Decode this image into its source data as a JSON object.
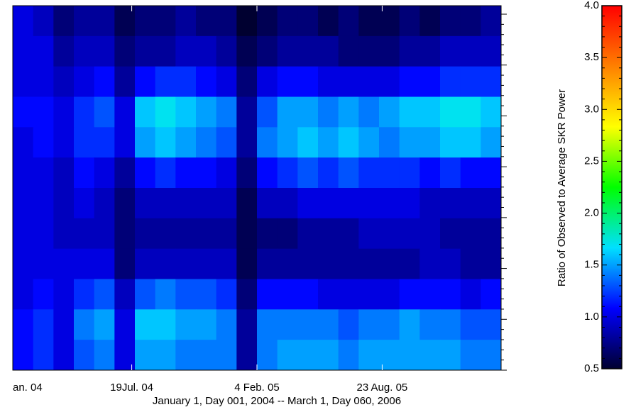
{
  "chart_data": {
    "type": "heatmap",
    "x_label": "January 1, Day 001, 2004 -- March 1, Day 060, 2006",
    "xlim": [
      10,
      790
    ],
    "xticks": [
      {
        "value": 0,
        "label": "an. 04"
      },
      {
        "value": 200,
        "label": "19Jul. 04"
      },
      {
        "value": 400,
        "label": "4 Feb. 05"
      },
      {
        "value": 600,
        "label": "23 Aug. 05"
      }
    ],
    "z": [
      [
        1.0,
        0.9,
        0.7,
        0.8,
        0.8,
        0.6,
        0.7,
        0.7,
        0.8,
        0.7,
        0.7,
        0.5,
        0.6,
        0.7,
        0.7,
        0.6,
        0.7,
        0.6,
        0.6,
        0.7,
        0.6,
        0.7,
        0.7,
        0.8
      ],
      [
        1.0,
        1.0,
        0.8,
        0.9,
        0.9,
        0.7,
        0.8,
        0.8,
        0.9,
        0.9,
        0.8,
        0.6,
        0.7,
        0.8,
        0.8,
        0.8,
        0.7,
        0.7,
        0.7,
        0.8,
        0.8,
        0.9,
        0.9,
        0.9
      ],
      [
        1.0,
        1.0,
        0.9,
        1.0,
        1.1,
        0.8,
        1.1,
        1.2,
        1.2,
        1.1,
        1.0,
        0.7,
        1.0,
        1.1,
        1.1,
        1.0,
        1.0,
        1.0,
        1.0,
        1.1,
        1.1,
        1.2,
        1.2,
        1.2
      ],
      [
        1.1,
        1.1,
        1.0,
        1.2,
        1.3,
        1.0,
        1.6,
        1.7,
        1.6,
        1.5,
        1.4,
        0.8,
        1.3,
        1.5,
        1.5,
        1.4,
        1.5,
        1.4,
        1.5,
        1.6,
        1.6,
        1.7,
        1.7,
        1.6
      ],
      [
        1.0,
        1.1,
        1.0,
        1.2,
        1.2,
        1.0,
        1.5,
        1.6,
        1.5,
        1.4,
        1.3,
        0.8,
        1.4,
        1.5,
        1.6,
        1.5,
        1.6,
        1.5,
        1.4,
        1.5,
        1.5,
        1.6,
        1.6,
        1.5
      ],
      [
        1.0,
        1.0,
        0.9,
        1.1,
        1.0,
        0.8,
        1.1,
        1.2,
        1.1,
        1.1,
        1.0,
        0.7,
        1.1,
        1.2,
        1.3,
        1.2,
        1.3,
        1.2,
        1.2,
        1.2,
        1.1,
        1.2,
        1.1,
        1.1
      ],
      [
        1.0,
        1.0,
        0.9,
        1.0,
        0.9,
        0.7,
        0.9,
        0.9,
        0.9,
        0.9,
        0.9,
        0.6,
        0.9,
        0.9,
        1.0,
        1.0,
        1.0,
        1.0,
        1.0,
        1.0,
        0.9,
        0.9,
        0.9,
        0.9
      ],
      [
        1.0,
        1.0,
        0.9,
        0.9,
        0.9,
        0.7,
        0.8,
        0.8,
        0.8,
        0.8,
        0.8,
        0.6,
        0.7,
        0.7,
        0.8,
        0.8,
        0.8,
        0.9,
        0.9,
        0.9,
        0.9,
        0.8,
        0.8,
        0.8
      ],
      [
        1.0,
        1.0,
        1.0,
        1.0,
        1.0,
        0.7,
        0.9,
        0.9,
        0.9,
        0.9,
        0.9,
        0.6,
        0.8,
        0.8,
        0.8,
        0.8,
        0.8,
        0.8,
        0.8,
        0.8,
        0.9,
        0.9,
        0.8,
        0.8
      ],
      [
        1.0,
        1.1,
        1.0,
        1.2,
        1.3,
        0.9,
        1.3,
        1.4,
        1.3,
        1.3,
        1.2,
        0.7,
        1.1,
        1.1,
        1.1,
        1.0,
        1.0,
        1.0,
        1.0,
        1.1,
        1.1,
        1.1,
        1.0,
        1.1
      ],
      [
        1.1,
        1.2,
        1.0,
        1.4,
        1.5,
        1.0,
        1.6,
        1.6,
        1.5,
        1.5,
        1.4,
        0.8,
        1.4,
        1.4,
        1.4,
        1.4,
        1.3,
        1.4,
        1.4,
        1.5,
        1.4,
        1.4,
        1.3,
        1.3
      ],
      [
        1.1,
        1.2,
        1.0,
        1.3,
        1.4,
        1.0,
        1.5,
        1.5,
        1.4,
        1.4,
        1.4,
        0.8,
        1.4,
        1.5,
        1.5,
        1.5,
        1.4,
        1.5,
        1.5,
        1.5,
        1.5,
        1.5,
        1.4,
        1.4
      ]
    ],
    "colormap": [
      "#000030",
      "#0000ff",
      "#00e0ff",
      "#00ff00",
      "#ffff00",
      "#ff8000",
      "#ff0000"
    ],
    "colorbar": {
      "label": "Ratio of Observed to Average SKR Power",
      "lim": [
        0.5,
        4.0
      ],
      "ticks": [
        0.5,
        {
          "value": 1,
          "label": "1.0"
        },
        1.5,
        {
          "value": 2,
          "label": "2.0"
        },
        2.5,
        {
          "value": 3,
          "label": "3.0"
        },
        3.5,
        {
          "value": 4,
          "label": "4.0"
        }
      ]
    }
  }
}
